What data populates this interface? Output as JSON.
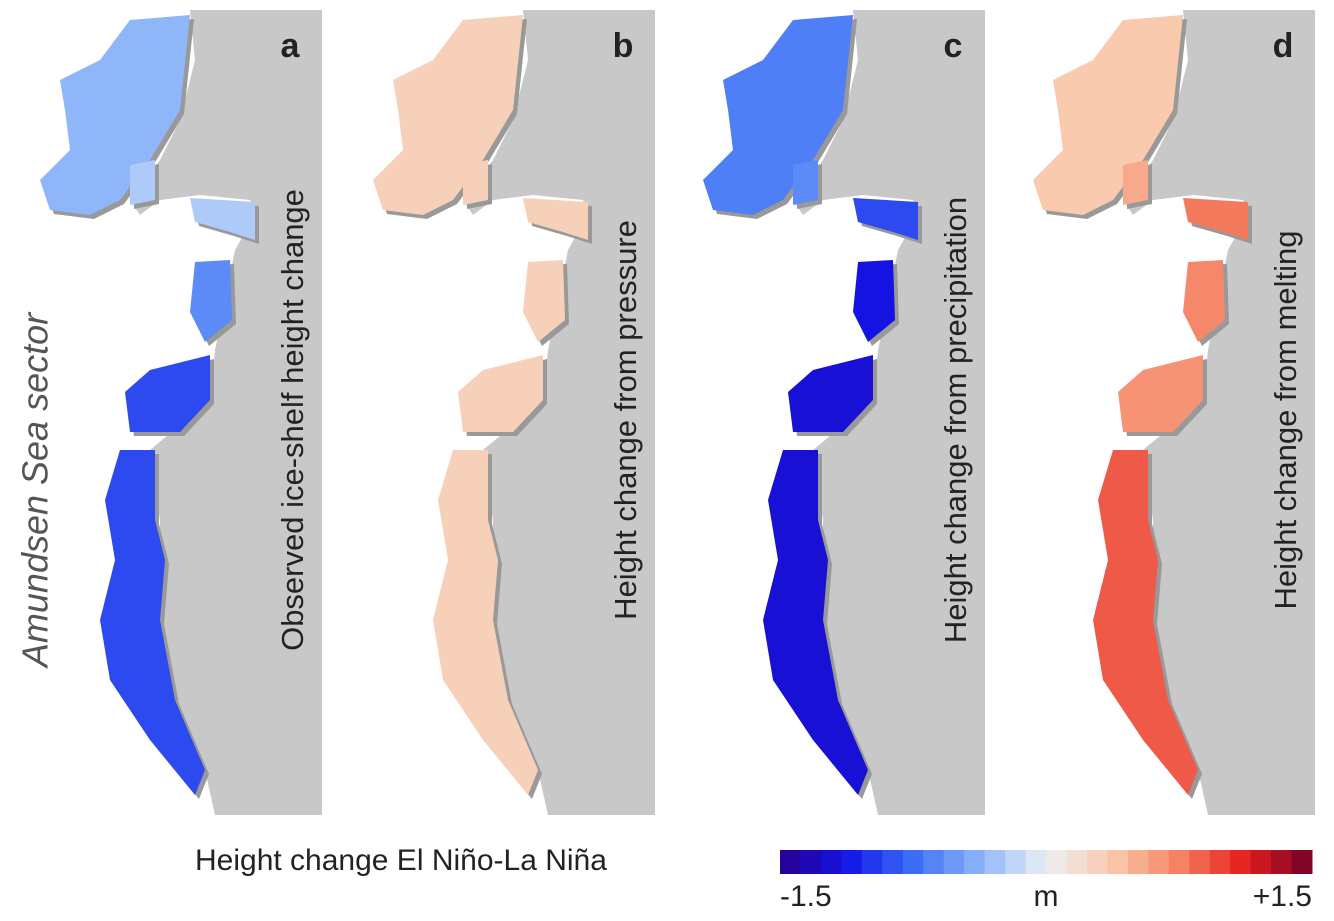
{
  "side_label": "Amundsen Sea sector",
  "panels": [
    {
      "letter": "a",
      "title": "Observed ice-shelf height change"
    },
    {
      "letter": "b",
      "title": "Height change from pressure"
    },
    {
      "letter": "c",
      "title": "Height change from precipitation"
    },
    {
      "letter": "d",
      "title": "Height change from melting"
    }
  ],
  "colorbar": {
    "title": "Height change El Niño-La Niña",
    "unit": "m",
    "lim": [
      -1.5,
      1.5
    ],
    "ticks": [
      -1.5,
      {
        "value": 1.5,
        "label": "+1.5"
      }
    ]
  }
}
